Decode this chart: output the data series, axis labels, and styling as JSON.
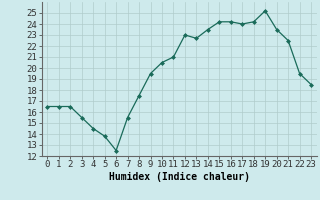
{
  "x": [
    0,
    1,
    2,
    3,
    4,
    5,
    6,
    7,
    8,
    9,
    10,
    11,
    12,
    13,
    14,
    15,
    16,
    17,
    18,
    19,
    20,
    21,
    22,
    23
  ],
  "y": [
    16.5,
    16.5,
    16.5,
    15.5,
    14.5,
    13.8,
    12.5,
    15.5,
    17.5,
    19.5,
    20.5,
    21.0,
    23.0,
    22.7,
    23.5,
    24.2,
    24.2,
    24.0,
    24.2,
    25.2,
    23.5,
    22.5,
    19.5,
    18.5
  ],
  "xlabel": "Humidex (Indice chaleur)",
  "xlim": [
    -0.5,
    23.5
  ],
  "ylim": [
    12,
    26
  ],
  "yticks": [
    12,
    13,
    14,
    15,
    16,
    17,
    18,
    19,
    20,
    21,
    22,
    23,
    24,
    25
  ],
  "xticks": [
    0,
    1,
    2,
    3,
    4,
    5,
    6,
    7,
    8,
    9,
    10,
    11,
    12,
    13,
    14,
    15,
    16,
    17,
    18,
    19,
    20,
    21,
    22,
    23
  ],
  "line_color": "#1a6b5a",
  "marker": "D",
  "marker_size": 2.0,
  "bg_color": "#ceeaec",
  "grid_color": "#b0cccc",
  "label_fontsize": 7,
  "tick_fontsize": 6.5
}
